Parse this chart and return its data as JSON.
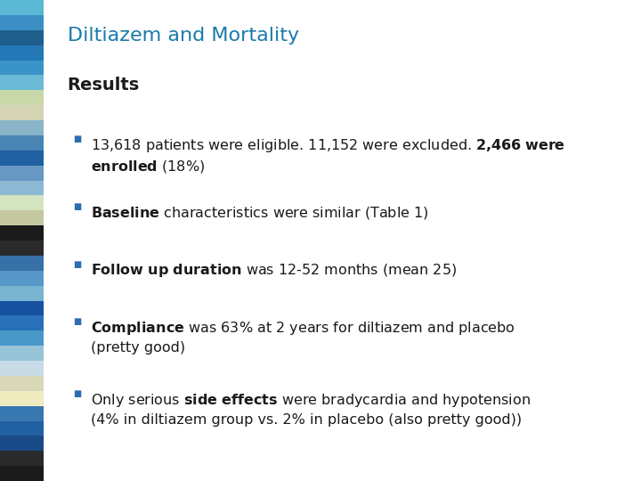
{
  "title": "Diltiazem and Mortality",
  "title_color": "#1a7aaa",
  "title_fontsize": 16,
  "section_header": "Results",
  "section_header_fontsize": 14,
  "bullet_color": "#2b6cb0",
  "bullet_size": 7,
  "text_color": "#1a1a1a",
  "body_fontsize": 11.5,
  "background_color": "#ffffff",
  "bullets": [
    {
      "bold_prefix": "13,618 patients were eligible. 11,152 were excluded. 2,466 were\nenrolled",
      "normal_suffix": " (18%)",
      "bold_parts": [
        "13,618 patients were eligible. 11,152 were excluded. 2,466 were\nenrolled"
      ],
      "text": "13,618 patients were eligible. 11,152 were excluded. 2,466 were enrolled (18%)"
    },
    {
      "bold_prefix": "Baseline",
      "normal_suffix": " characteristics were similar (Table 1)",
      "text": "Baseline characteristics were similar (Table 1)"
    },
    {
      "bold_prefix": "Follow up duration",
      "normal_suffix": " was 12-52 months (mean 25)",
      "text": "Follow up duration was 12-52 months (mean 25)"
    },
    {
      "bold_prefix": "Compliance",
      "normal_suffix": " was 63% at 2 years for diltiazem and placebo\n(pretty good)",
      "text": "Compliance was 63% at 2 years for diltiazem and placebo (pretty good)"
    },
    {
      "bold_prefix": "Only serious ",
      "bold_middle": "side effects",
      "normal_suffix": " were bradycardia and hypotension\n(4% in diltiazem group vs. 2% in placebo (also pretty good))",
      "text": "Only serious side effects were bradycardia and hypotension (4% in diltiazem group vs. 2% in placebo (also pretty good))"
    }
  ],
  "side_strip_colors": [
    "#5bb8d4",
    "#3a8fc4",
    "#1e5f8e",
    "#2378b5",
    "#3a94c7",
    "#6bbbd8",
    "#c8d8a8",
    "#d4d4b4",
    "#8ab4c8",
    "#4884b4",
    "#2060a0",
    "#6898c4",
    "#8cb8d4",
    "#d4e4c0",
    "#c4c8a0",
    "#1a1a1a",
    "#2a2a2a",
    "#3870a8",
    "#5898c8",
    "#78b4d0",
    "#1850a0",
    "#2870b8",
    "#4898c8",
    "#98c4d8",
    "#c8dce8",
    "#d8d8b8",
    "#f0ecc0",
    "#3878b0",
    "#2060a0",
    "#1a4a88",
    "#2a2a2a",
    "#1a1a1a"
  ]
}
